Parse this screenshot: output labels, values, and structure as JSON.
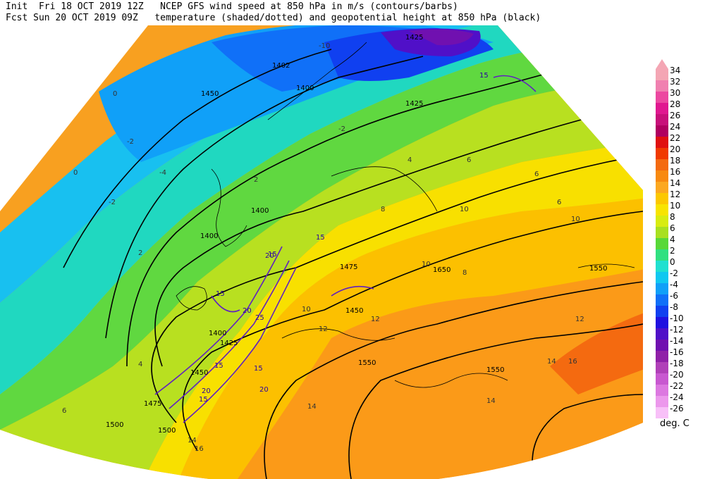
{
  "header": {
    "line1": "Init  Fri 18 OCT 2019 12Z   NCEP GFS wind speed at 850 hPa in m/s (contours/barbs)",
    "line2": "Fcst Sun 20 OCT 2019 09Z   temperature (shaded/dotted) and geopotential height at 850 hPa (black)"
  },
  "legend": {
    "units": "deg. C",
    "entries": [
      {
        "label": "34",
        "color": "#f4a6b4"
      },
      {
        "label": "32",
        "color": "#f080b0"
      },
      {
        "label": "30",
        "color": "#ec48a0"
      },
      {
        "label": "28",
        "color": "#e01890"
      },
      {
        "label": "26",
        "color": "#c8107a"
      },
      {
        "label": "24",
        "color": "#b00060"
      },
      {
        "label": "22",
        "color": "#e01010"
      },
      {
        "label": "20",
        "color": "#f03a00"
      },
      {
        "label": "18",
        "color": "#f46a10"
      },
      {
        "label": "16",
        "color": "#f88a10"
      },
      {
        "label": "14",
        "color": "#fca820"
      },
      {
        "label": "12",
        "color": "#fcc800"
      },
      {
        "label": "10",
        "color": "#f8e400"
      },
      {
        "label": "8",
        "color": "#d8ec10"
      },
      {
        "label": "6",
        "color": "#a8e020"
      },
      {
        "label": "4",
        "color": "#58d838"
      },
      {
        "label": "2",
        "color": "#30e080"
      },
      {
        "label": "0",
        "color": "#20e0d0"
      },
      {
        "label": "-2",
        "color": "#10c8f0"
      },
      {
        "label": "-4",
        "color": "#10a0f8"
      },
      {
        "label": "-6",
        "color": "#1070f8"
      },
      {
        "label": "-8",
        "color": "#1040f0"
      },
      {
        "label": "-10",
        "color": "#2010e0"
      },
      {
        "label": "-12",
        "color": "#5010c8"
      },
      {
        "label": "-14",
        "color": "#7010b0"
      },
      {
        "label": "-16",
        "color": "#9020a8"
      },
      {
        "label": "-18",
        "color": "#b040b8"
      },
      {
        "label": "-20",
        "color": "#c858d0"
      },
      {
        "label": "-22",
        "color": "#dc78e0"
      },
      {
        "label": "-24",
        "color": "#ec98ec"
      },
      {
        "label": "-26",
        "color": "#f8c0f8"
      }
    ]
  },
  "map": {
    "height_labels": [
      "1425",
      "1402",
      "1400",
      "1450",
      "1425",
      "1400",
      "1400",
      "1475",
      "1450",
      "1550",
      "1650",
      "1550",
      "1400",
      "1425",
      "1450",
      "1475",
      "1500",
      "1500",
      "1550"
    ],
    "temp_labels": [
      "-10",
      "-4",
      "-2",
      "0",
      "-2",
      "0",
      "2",
      "4",
      "6",
      "8",
      "10",
      "12",
      "14",
      "16",
      "12",
      "10",
      "10",
      "14",
      "12",
      "14",
      "14",
      "16",
      "6",
      "10",
      "8",
      "6",
      "4",
      "2",
      "-2",
      "6"
    ],
    "wind_labels": [
      "15",
      "20",
      "25",
      "15",
      "20",
      "15",
      "20",
      "15",
      "15",
      "15",
      "20",
      "15"
    ]
  }
}
